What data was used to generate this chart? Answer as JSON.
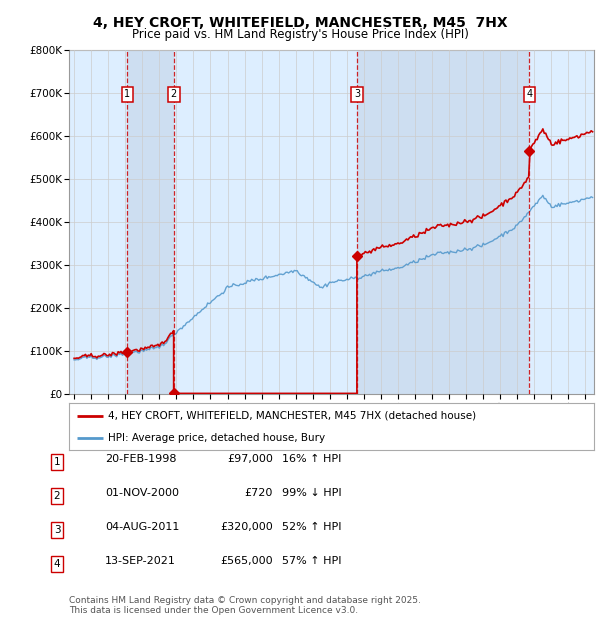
{
  "title": "4, HEY CROFT, WHITEFIELD, MANCHESTER, M45  7HX",
  "subtitle": "Price paid vs. HM Land Registry's House Price Index (HPI)",
  "ylim": [
    0,
    800000
  ],
  "yticks": [
    0,
    100000,
    200000,
    300000,
    400000,
    500000,
    600000,
    700000,
    800000
  ],
  "ytick_labels": [
    "£0",
    "£100K",
    "£200K",
    "£300K",
    "£400K",
    "£500K",
    "£600K",
    "£700K",
    "£800K"
  ],
  "xlim_start": 1994.7,
  "xlim_end": 2025.5,
  "transactions": [
    {
      "num": 1,
      "date_str": "20-FEB-1998",
      "date_dec": 1998.13,
      "price": 97000,
      "hpi_rel": "16% ↑ HPI"
    },
    {
      "num": 2,
      "date_str": "01-NOV-2000",
      "date_dec": 2000.84,
      "price": 720,
      "hpi_rel": "99% ↓ HPI"
    },
    {
      "num": 3,
      "date_str": "04-AUG-2011",
      "date_dec": 2011.59,
      "price": 320000,
      "hpi_rel": "52% ↑ HPI"
    },
    {
      "num": 4,
      "date_str": "13-SEP-2021",
      "date_dec": 2021.71,
      "price": 565000,
      "hpi_rel": "57% ↑ HPI"
    }
  ],
  "legend_property": "4, HEY CROFT, WHITEFIELD, MANCHESTER, M45 7HX (detached house)",
  "legend_hpi": "HPI: Average price, detached house, Bury",
  "footnote": "Contains HM Land Registry data © Crown copyright and database right 2025.\nThis data is licensed under the Open Government Licence v3.0.",
  "property_color": "#cc0000",
  "hpi_color": "#5599cc",
  "background_color": "#ddeeff",
  "shaded_color": "#ccddf0",
  "plot_bg": "#ffffff",
  "grid_color": "#cccccc",
  "marker_box_color": "#cc0000"
}
